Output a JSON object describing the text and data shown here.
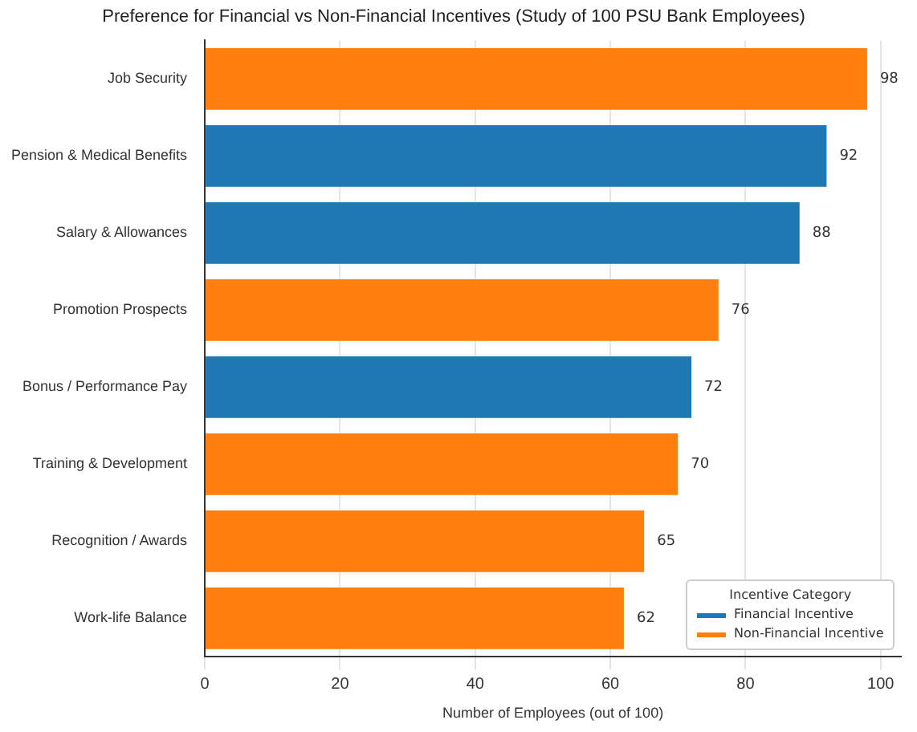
{
  "chart_data": {
    "type": "bar",
    "orientation": "horizontal",
    "title": "Preference for Financial vs Non-Financial Incentives (Study of 100 PSU Bank Employees)",
    "xlabel": "Number of Employees (out of 100)",
    "legend_title": "Incentive Category",
    "categories": [
      "Job Security",
      "Pension & Medical Benefits",
      "Salary & Allowances",
      "Promotion Prospects",
      "Bonus / Performance Pay",
      "Training & Development",
      "Recognition / Awards",
      "Work-life Balance"
    ],
    "series": [
      {
        "name": "Financial Incentive",
        "color": "#1f77b4",
        "values": [
          null,
          92,
          88,
          null,
          72,
          null,
          null,
          null
        ]
      },
      {
        "name": "Non-Financial Incentive",
        "color": "#ff7f0e",
        "values": [
          98,
          null,
          null,
          76,
          null,
          70,
          65,
          62
        ]
      }
    ],
    "xlim": [
      0,
      103
    ],
    "xticks": [
      0,
      20,
      40,
      60,
      80,
      100
    ],
    "grid": "x",
    "legend": "bottom right",
    "data_labels": true
  }
}
